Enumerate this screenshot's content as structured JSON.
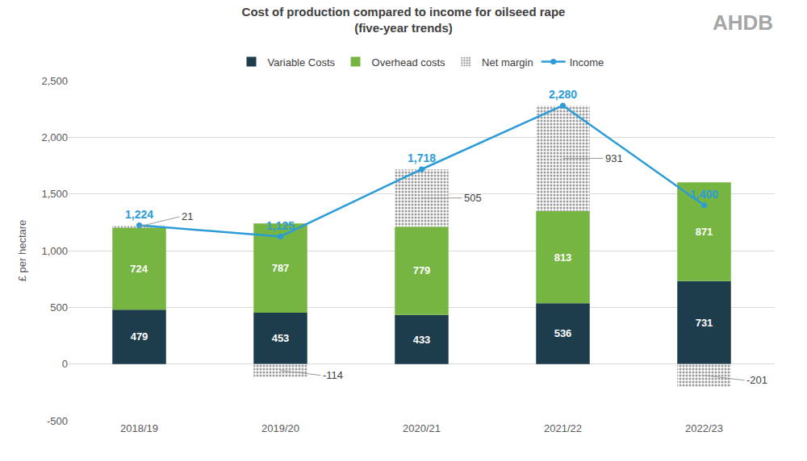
{
  "chart_data": {
    "type": "bar",
    "title": "Cost of production compared to income for oilseed rape\n(five-year trends)",
    "logo": "AHDB",
    "y_label": "£ per hectare",
    "categories": [
      "2018/19",
      "2019/20",
      "2020/21",
      "2021/22",
      "2022/23"
    ],
    "series": [
      {
        "name": "Variable Costs",
        "type": "bar",
        "color": "#1d3c4c",
        "values": [
          479,
          453,
          433,
          536,
          731
        ]
      },
      {
        "name": "Overhead costs",
        "type": "bar",
        "color": "#77b543",
        "values": [
          724,
          787,
          779,
          813,
          871
        ]
      },
      {
        "name": "Net margin",
        "type": "bar",
        "color": "#9a9a9a",
        "values": [
          21,
          -114,
          505,
          931,
          -201
        ]
      },
      {
        "name": "Income",
        "type": "line",
        "color": "#2b9cd8",
        "marker": "circle",
        "values": [
          1224,
          1125,
          1718,
          2280,
          1400
        ],
        "value_labels": [
          "1,224",
          "1,125",
          "1,718",
          "2,280",
          "1,400"
        ]
      }
    ],
    "stacked": true,
    "data_labels": true,
    "grid": true,
    "legend": "top",
    "ylim": [
      -500,
      2500
    ],
    "yticks": [
      -500,
      0,
      500,
      {
        "value": 1000,
        "label": "1,000"
      },
      {
        "value": 1500,
        "label": "1,500"
      },
      {
        "value": 2000,
        "label": "2,000"
      },
      {
        "value": 2500,
        "label": "2,500"
      }
    ]
  }
}
